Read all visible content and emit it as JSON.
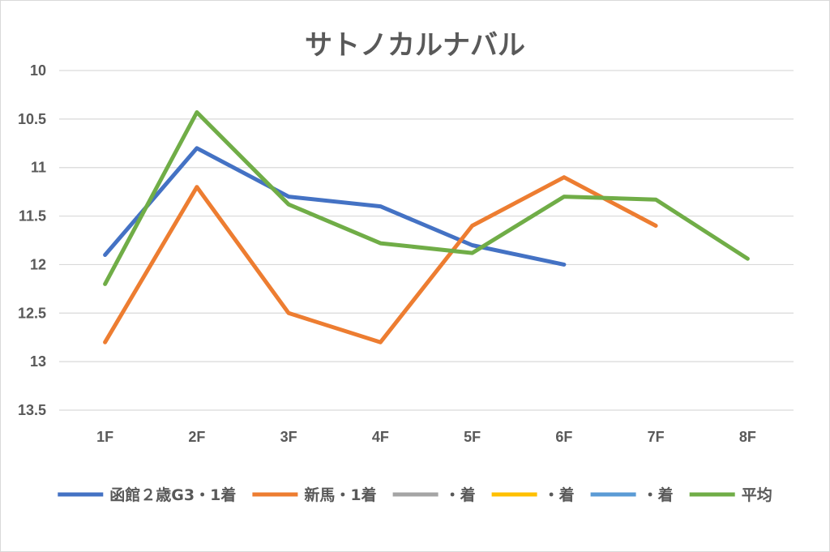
{
  "chart_data": {
    "type": "line",
    "title": "サトノカルナバル",
    "categories": [
      "1F",
      "2F",
      "3F",
      "4F",
      "5F",
      "6F",
      "7F",
      "8F"
    ],
    "y_ticks": [
      "10",
      "10.5",
      "11",
      "11.5",
      "12",
      "12.5",
      "13",
      "13.5"
    ],
    "ylim": [
      10,
      13.5
    ],
    "y_reversed": true,
    "grid": true,
    "legend_position": "bottom",
    "series": [
      {
        "name": "函館２歳G3・1着",
        "color": "#4472C4",
        "values": [
          11.9,
          10.8,
          11.3,
          11.4,
          11.8,
          12.0,
          null,
          null
        ]
      },
      {
        "name": "新馬・1着",
        "color": "#ED7D31",
        "values": [
          12.8,
          11.2,
          12.5,
          12.8,
          11.6,
          11.1,
          11.6,
          null
        ]
      },
      {
        "name": "・着",
        "color": "#A5A5A5",
        "values": [
          null,
          null,
          null,
          null,
          null,
          null,
          null,
          null
        ]
      },
      {
        "name": "・着",
        "color": "#FFC000",
        "values": [
          null,
          null,
          null,
          null,
          null,
          null,
          null,
          null
        ]
      },
      {
        "name": "・着",
        "color": "#5B9BD5",
        "values": [
          null,
          null,
          null,
          null,
          null,
          null,
          null,
          null
        ]
      },
      {
        "name": "平均",
        "color": "#70AD47",
        "values": [
          12.2,
          10.43,
          11.38,
          11.78,
          11.88,
          11.3,
          11.33,
          11.94
        ]
      }
    ]
  }
}
